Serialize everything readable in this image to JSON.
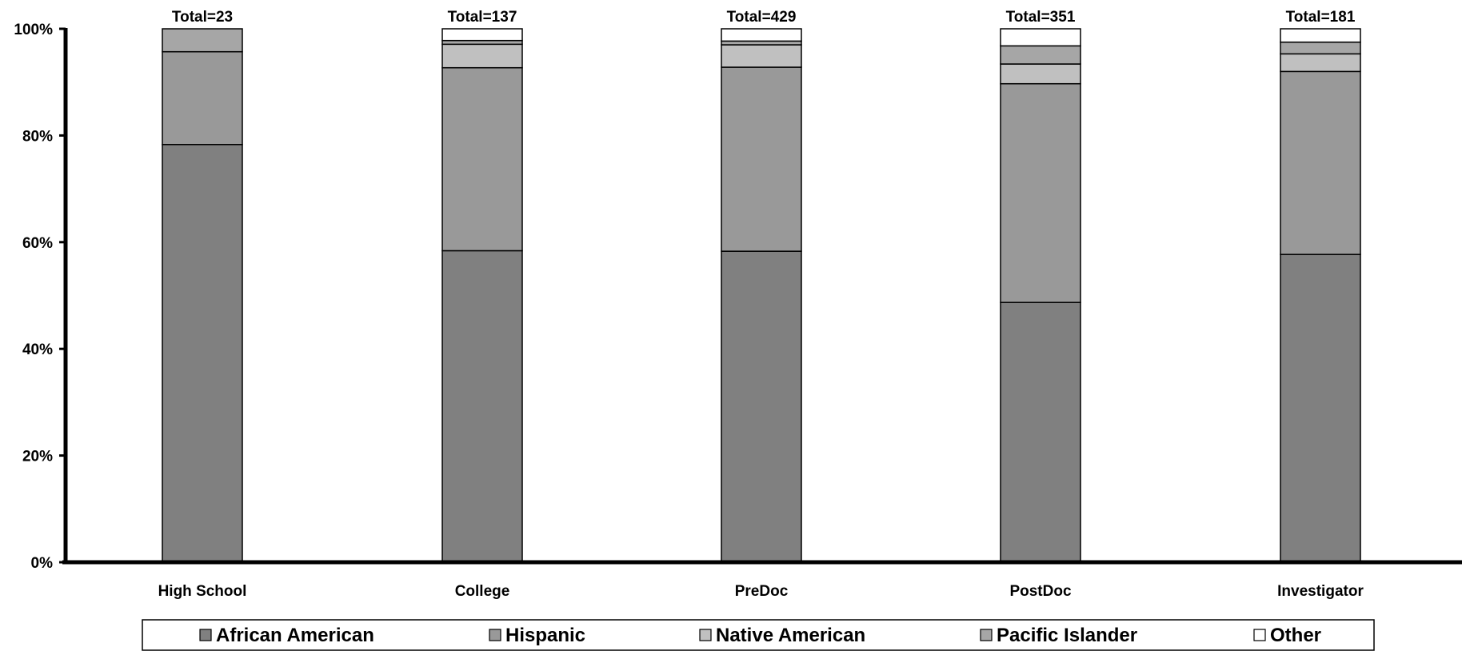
{
  "chart_data": {
    "type": "bar",
    "stacked": true,
    "normalized": true,
    "categories": [
      "High School",
      "College",
      "PreDoc",
      "PostDoc",
      "Investigator"
    ],
    "totals": [
      23,
      137,
      429,
      351,
      181
    ],
    "total_label_prefix": "Total=",
    "series": [
      {
        "name": "African American",
        "color": "#808080",
        "values": [
          78.3,
          58.4,
          58.3,
          48.7,
          57.7
        ]
      },
      {
        "name": "Hispanic",
        "color": "#999999",
        "values": [
          17.4,
          34.3,
          34.5,
          41.0,
          34.3
        ]
      },
      {
        "name": "Native American",
        "color": "#c0c0c0",
        "values": [
          0,
          4.4,
          4.2,
          3.7,
          3.3
        ]
      },
      {
        "name": "Pacific Islander",
        "color": "#a6a6a6",
        "values": [
          4.3,
          0.7,
          0.7,
          3.4,
          2.2
        ]
      },
      {
        "name": "Other",
        "color": "#ffffff",
        "values": [
          0,
          2.2,
          2.3,
          3.2,
          2.5
        ]
      }
    ],
    "y_ticks": [
      "0%",
      "20%",
      "40%",
      "60%",
      "80%",
      "100%"
    ],
    "ylim": [
      0,
      100
    ],
    "legend_position": "bottom",
    "grid": false
  }
}
